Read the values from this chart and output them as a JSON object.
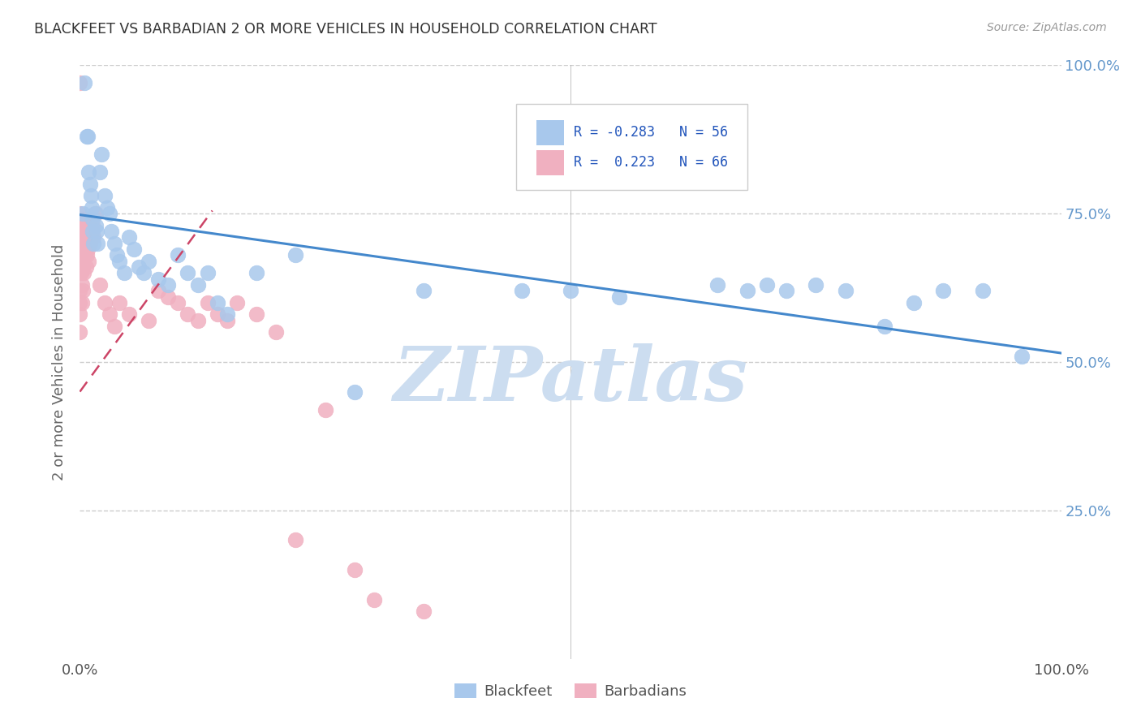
{
  "title": "BLACKFEET VS BARBADIAN 2 OR MORE VEHICLES IN HOUSEHOLD CORRELATION CHART",
  "source": "Source: ZipAtlas.com",
  "ylabel": "2 or more Vehicles in Household",
  "blackfeet_color": "#a8c8ec",
  "barbadian_color": "#f0b0c0",
  "blackfeet_line_color": "#4488cc",
  "barbadian_line_color": "#cc4466",
  "background_color": "#ffffff",
  "grid_color": "#cccccc",
  "watermark_text": "ZIPatlas",
  "watermark_color": "#ccddf0",
  "right_tick_color": "#6699cc",
  "title_color": "#333333",
  "source_color": "#999999",
  "bottom_tick_color": "#555555",
  "blackfeet_x": [
    0.003,
    0.005,
    0.007,
    0.008,
    0.009,
    0.01,
    0.011,
    0.012,
    0.013,
    0.013,
    0.014,
    0.015,
    0.016,
    0.017,
    0.018,
    0.02,
    0.022,
    0.025,
    0.028,
    0.03,
    0.032,
    0.035,
    0.038,
    0.04,
    0.045,
    0.05,
    0.055,
    0.06,
    0.065,
    0.07,
    0.08,
    0.09,
    0.1,
    0.11,
    0.12,
    0.13,
    0.14,
    0.15,
    0.18,
    0.22,
    0.28,
    0.35,
    0.45,
    0.5,
    0.55,
    0.65,
    0.68,
    0.7,
    0.72,
    0.75,
    0.78,
    0.82,
    0.85,
    0.88,
    0.92,
    0.96
  ],
  "blackfeet_y": [
    0.75,
    0.97,
    0.88,
    0.88,
    0.82,
    0.8,
    0.78,
    0.76,
    0.74,
    0.72,
    0.7,
    0.75,
    0.73,
    0.72,
    0.7,
    0.82,
    0.85,
    0.78,
    0.76,
    0.75,
    0.72,
    0.7,
    0.68,
    0.67,
    0.65,
    0.71,
    0.69,
    0.66,
    0.65,
    0.67,
    0.64,
    0.63,
    0.68,
    0.65,
    0.63,
    0.65,
    0.6,
    0.58,
    0.65,
    0.68,
    0.45,
    0.62,
    0.62,
    0.62,
    0.61,
    0.63,
    0.62,
    0.63,
    0.62,
    0.63,
    0.62,
    0.56,
    0.6,
    0.62,
    0.62,
    0.51
  ],
  "barbadian_x": [
    0.0,
    0.0,
    0.0,
    0.0,
    0.0,
    0.0,
    0.0,
    0.0,
    0.0,
    0.0,
    0.001,
    0.001,
    0.001,
    0.001,
    0.002,
    0.002,
    0.002,
    0.002,
    0.002,
    0.003,
    0.003,
    0.003,
    0.003,
    0.004,
    0.004,
    0.005,
    0.005,
    0.006,
    0.006,
    0.006,
    0.007,
    0.007,
    0.008,
    0.008,
    0.009,
    0.009,
    0.01,
    0.01,
    0.011,
    0.012,
    0.013,
    0.014,
    0.016,
    0.02,
    0.025,
    0.03,
    0.035,
    0.04,
    0.05,
    0.07,
    0.08,
    0.09,
    0.1,
    0.11,
    0.12,
    0.13,
    0.14,
    0.15,
    0.16,
    0.18,
    0.2,
    0.22,
    0.25,
    0.28,
    0.3,
    0.35
  ],
  "barbadian_y": [
    0.97,
    0.75,
    0.72,
    0.7,
    0.68,
    0.65,
    0.62,
    0.6,
    0.58,
    0.55,
    0.74,
    0.71,
    0.68,
    0.65,
    0.73,
    0.7,
    0.67,
    0.63,
    0.6,
    0.72,
    0.69,
    0.66,
    0.62,
    0.7,
    0.65,
    0.72,
    0.68,
    0.73,
    0.7,
    0.66,
    0.71,
    0.68,
    0.72,
    0.69,
    0.7,
    0.67,
    0.74,
    0.7,
    0.71,
    0.72,
    0.73,
    0.71,
    0.75,
    0.63,
    0.6,
    0.58,
    0.56,
    0.6,
    0.58,
    0.57,
    0.62,
    0.61,
    0.6,
    0.58,
    0.57,
    0.6,
    0.58,
    0.57,
    0.6,
    0.58,
    0.55,
    0.2,
    0.42,
    0.15,
    0.1,
    0.08
  ],
  "blackfeet_line_x": [
    0.0,
    1.0
  ],
  "blackfeet_line_y": [
    0.748,
    0.515
  ],
  "barbadian_line_x": [
    0.0,
    0.135
  ],
  "barbadian_line_y": [
    0.45,
    0.755
  ],
  "xlim": [
    0.0,
    1.0
  ],
  "ylim": [
    0.0,
    1.0
  ],
  "yticks": [
    0.25,
    0.5,
    0.75,
    1.0
  ],
  "xticks": [
    0.0,
    1.0
  ],
  "ytick_labels": [
    "25.0%",
    "50.0%",
    "75.0%",
    "100.0%"
  ],
  "xtick_labels": [
    "0.0%",
    "100.0%"
  ]
}
